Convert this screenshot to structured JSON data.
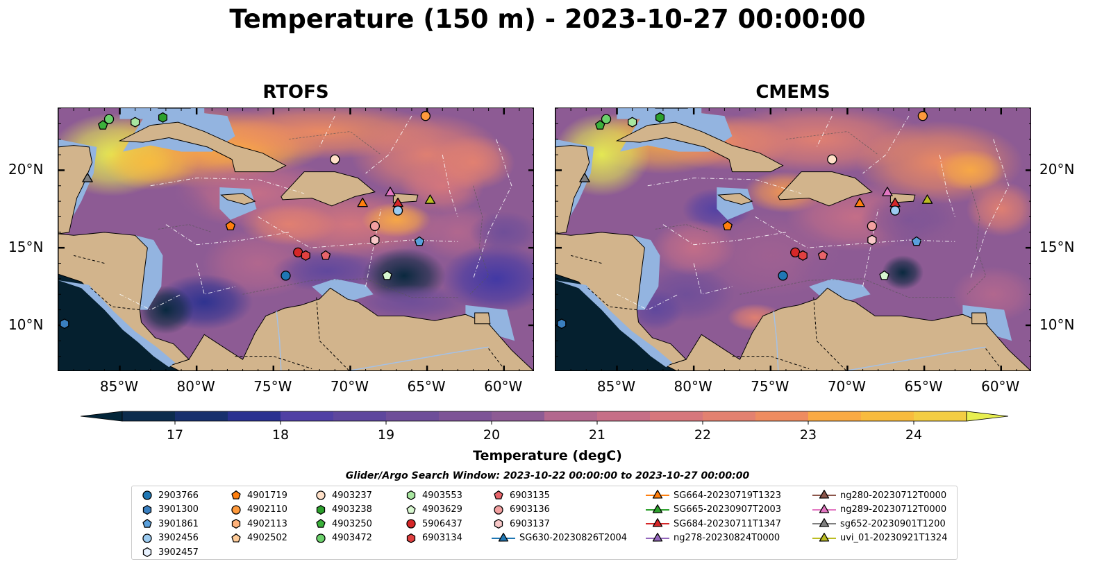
{
  "title": "Temperature (150 m) - 2023-10-27 00:00:00",
  "panels": [
    {
      "title": "RTOFS"
    },
    {
      "title": "CMEMS"
    }
  ],
  "axes": {
    "lon_ticks": [
      {
        "value": -85,
        "label": "85°W"
      },
      {
        "value": -80,
        "label": "80°W"
      },
      {
        "value": -75,
        "label": "75°W"
      },
      {
        "value": -70,
        "label": "70°W"
      },
      {
        "value": -65,
        "label": "65°W"
      },
      {
        "value": -60,
        "label": "60°W"
      }
    ],
    "lat_ticks": [
      {
        "value": 20,
        "label": "20°N"
      },
      {
        "value": 15,
        "label": "15°N"
      },
      {
        "value": 10,
        "label": "10°N"
      }
    ],
    "lon_range": [
      -89,
      -58
    ],
    "lat_range": [
      7,
      24
    ]
  },
  "colorbar": {
    "label": "Temperature (degC)",
    "range": [
      16.5,
      24.5
    ],
    "ticks": [
      "17",
      "18",
      "19",
      "20",
      "21",
      "22",
      "23",
      "24"
    ],
    "extend": "both",
    "colormap": "thermal",
    "colors": [
      "#03263a",
      "#0c2c4d",
      "#18306d",
      "#2a3190",
      "#3e37a5",
      "#5040a4",
      "#5e479d",
      "#6e4e99",
      "#7d5496",
      "#8d5b94",
      "#a06191",
      "#b3688e",
      "#c66f87",
      "#d6777c",
      "#e38170",
      "#ee8c60",
      "#f69a50",
      "#f9aa44",
      "#f8bb3e",
      "#f3cd43",
      "#e8ef50"
    ]
  },
  "search_window": "Glider/Argo Search Window: 2023-10-22 00:00:00 to 2023-10-27 00:00:00",
  "legend": [
    {
      "id": "2903766",
      "marker": "circle",
      "color": "#1f77b4"
    },
    {
      "id": "3901300",
      "marker": "hexagon",
      "color": "#3a7fc0"
    },
    {
      "id": "3901861",
      "marker": "pentagon",
      "color": "#5aa0dc"
    },
    {
      "id": "3902456",
      "marker": "circle",
      "color": "#9ccbf0"
    },
    {
      "id": "3902457",
      "marker": "hexagon",
      "color": "#e8f2ff"
    },
    {
      "id": "4901719",
      "marker": "pentagon",
      "color": "#ff7f0e"
    },
    {
      "id": "4902110",
      "marker": "circle",
      "color": "#ff9a3c"
    },
    {
      "id": "4902113",
      "marker": "hexagon",
      "color": "#ffb27a"
    },
    {
      "id": "4902502",
      "marker": "pentagon",
      "color": "#ffcc99"
    },
    {
      "id": "4903237",
      "marker": "circle",
      "color": "#ffe0c8"
    },
    {
      "id": "4903238",
      "marker": "hexagon",
      "color": "#2ca02c"
    },
    {
      "id": "4903250",
      "marker": "pentagon",
      "color": "#3bb13b"
    },
    {
      "id": "4903472",
      "marker": "circle",
      "color": "#6cd16c"
    },
    {
      "id": "4903553",
      "marker": "hexagon",
      "color": "#a8e6a0"
    },
    {
      "id": "4903629",
      "marker": "pentagon",
      "color": "#d8f7d0"
    },
    {
      "id": "5906437",
      "marker": "circle",
      "color": "#d62728"
    },
    {
      "id": "6903134",
      "marker": "hexagon",
      "color": "#e04040"
    },
    {
      "id": "6903135",
      "marker": "pentagon",
      "color": "#e8646a"
    },
    {
      "id": "6903136",
      "marker": "circle",
      "color": "#f2a0a0"
    },
    {
      "id": "6903137",
      "marker": "hexagon",
      "color": "#f8c8c8"
    },
    {
      "id": "SG630-20230826T2004",
      "marker": "triangle-line",
      "color": "#1f77b4"
    },
    {
      "id": "SG664-20230719T1323",
      "marker": "triangle-line",
      "color": "#ff7f0e"
    },
    {
      "id": "SG665-20230907T2003",
      "marker": "triangle-line",
      "color": "#2ca02c"
    },
    {
      "id": "SG684-20230711T1347",
      "marker": "triangle-line",
      "color": "#d62728"
    },
    {
      "id": "ng278-20230824T0000",
      "marker": "triangle-line",
      "color": "#9467bd"
    },
    {
      "id": "ng280-20230712T0000",
      "marker": "triangle-line",
      "color": "#8c564b"
    },
    {
      "id": "ng289-20230712T0000",
      "marker": "triangle-line",
      "color": "#e377c2"
    },
    {
      "id": "sg652-20230901T1200",
      "marker": "triangle-line",
      "color": "#7f7f7f"
    },
    {
      "id": "uvi_01-20230921T1324",
      "marker": "triangle-line",
      "color": "#bcbd22"
    }
  ],
  "observations": [
    {
      "id": "4903472",
      "lon": -85.7,
      "lat": 23.3
    },
    {
      "id": "4903250",
      "lon": -86.1,
      "lat": 22.9
    },
    {
      "id": "4903553",
      "lon": -84.0,
      "lat": 23.1
    },
    {
      "id": "4903238",
      "lon": -82.2,
      "lat": 23.4
    },
    {
      "id": "4902110",
      "lon": -65.1,
      "lat": 23.5
    },
    {
      "id": "sg652-20230901T1200",
      "lon": -87.1,
      "lat": 19.5
    },
    {
      "id": "4903237",
      "lon": -71.0,
      "lat": 20.7
    },
    {
      "id": "4901719",
      "lon": -77.8,
      "lat": 16.4
    },
    {
      "id": "SG664-20230719T1323",
      "lon": -69.2,
      "lat": 17.9
    },
    {
      "id": "ng289-20230712T0000",
      "lon": -67.4,
      "lat": 18.6
    },
    {
      "id": "SG684-20230711T1347",
      "lon": -66.9,
      "lat": 17.9
    },
    {
      "id": "3902456",
      "lon": -66.9,
      "lat": 17.4
    },
    {
      "id": "uvi_01-20230921T1324",
      "lon": -64.8,
      "lat": 18.1
    },
    {
      "id": "6903136",
      "lon": -68.4,
      "lat": 16.4
    },
    {
      "id": "6903137",
      "lon": -68.4,
      "lat": 15.5
    },
    {
      "id": "3901861",
      "lon": -65.5,
      "lat": 15.4
    },
    {
      "id": "5906437",
      "lon": -73.4,
      "lat": 14.7
    },
    {
      "id": "6903134",
      "lon": -72.9,
      "lat": 14.5
    },
    {
      "id": "6903135",
      "lon": -71.6,
      "lat": 14.5
    },
    {
      "id": "2903766",
      "lon": -74.2,
      "lat": 13.2
    },
    {
      "id": "4903629",
      "lon": -67.6,
      "lat": 13.2
    },
    {
      "id": "3901300",
      "lon": -88.6,
      "lat": 10.1
    }
  ]
}
